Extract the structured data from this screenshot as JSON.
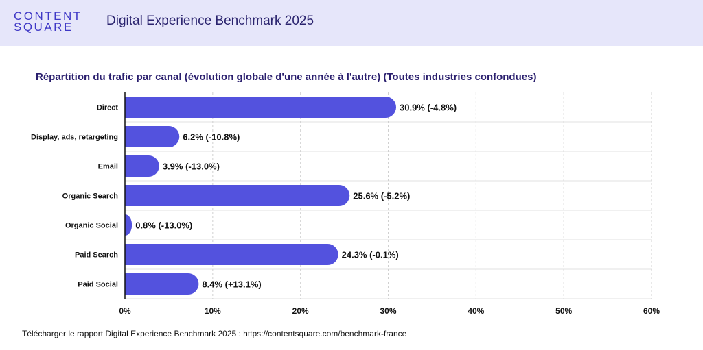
{
  "header": {
    "logo_line1": "CONTENT",
    "logo_line2": "SQUARE",
    "title": "Digital Experience Benchmark 2025"
  },
  "footer": {
    "text": "Télécharger le rapport Digital Experience Benchmark 2025 : https://contentsquare.com/benchmark-france"
  },
  "colors": {
    "bar": "#5352de",
    "header_bg": "#e6e6fa",
    "title": "#2a1f6e",
    "grid": "#d0d0d0"
  },
  "chart_data": {
    "type": "bar",
    "orientation": "horizontal",
    "title": "Répartition du trafic par canal (évolution globale d'une année à l'autre) (Toutes industries confondues)",
    "categories": [
      "Direct",
      "Display, ads, retargeting",
      "Email",
      "Organic Search",
      "Organic Social",
      "Paid Search",
      "Paid Social"
    ],
    "values": [
      30.9,
      6.2,
      3.9,
      25.6,
      0.8,
      24.3,
      8.4
    ],
    "data_labels": [
      "30.9% (-4.8%)",
      "6.2% (-10.8%)",
      "3.9% (-13.0%)",
      "25.6% (-5.2%)",
      "0.8% (-13.0%)",
      "24.3% (-0.1%)",
      "8.4% (+13.1%)"
    ],
    "xlim": [
      0,
      60
    ],
    "x_ticks": [
      "0%",
      "10%",
      "20%",
      "30%",
      "40%",
      "50%",
      "60%"
    ],
    "grid": true
  }
}
